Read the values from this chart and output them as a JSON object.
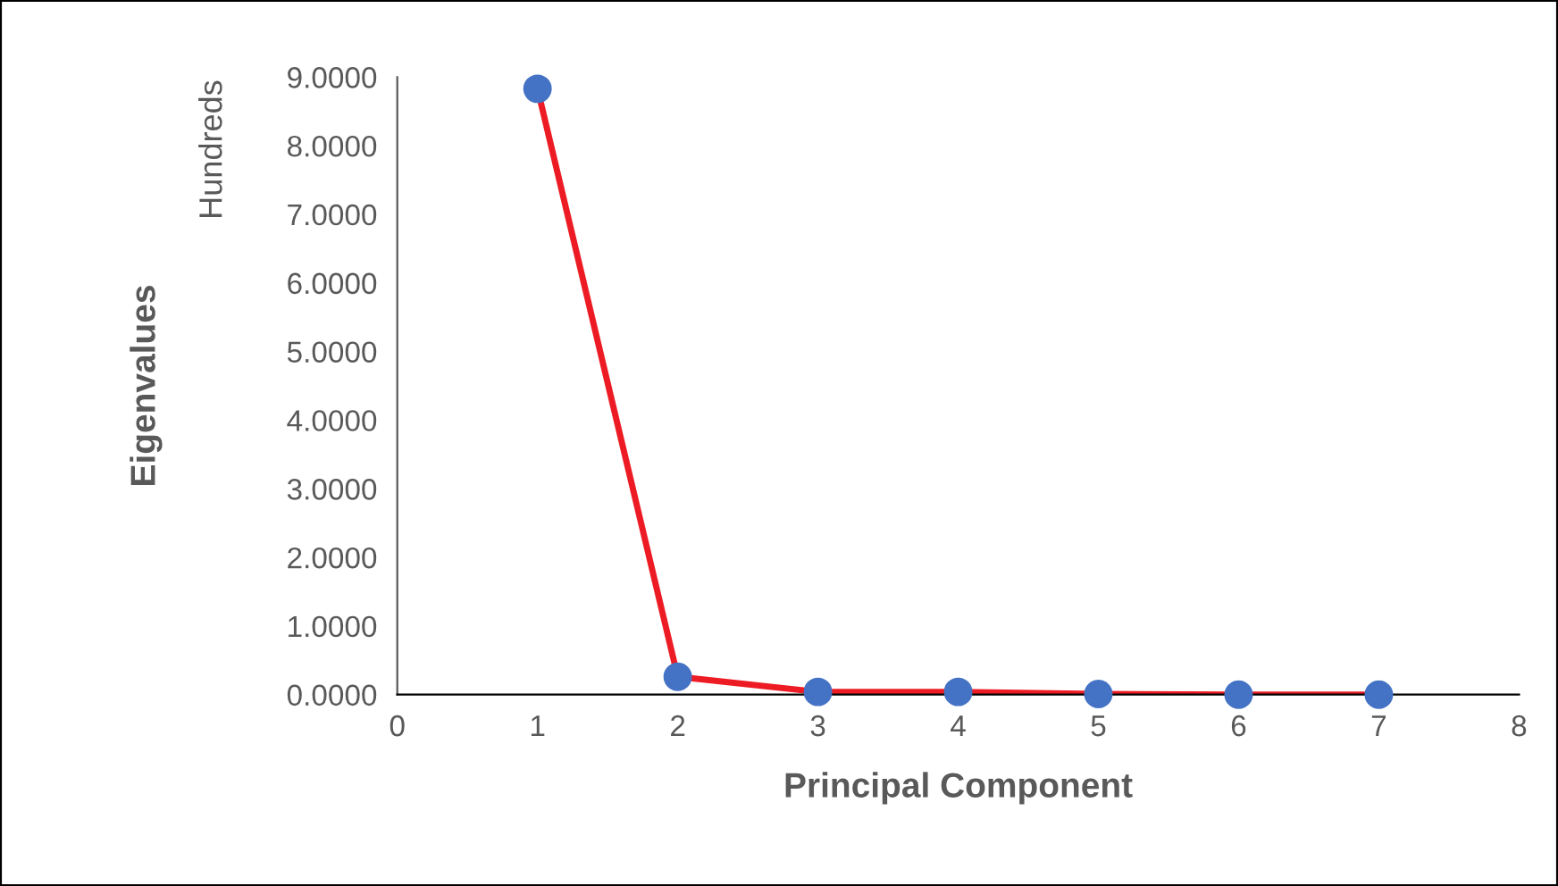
{
  "chart_data": {
    "type": "line",
    "xlabel": "Principal Component",
    "ylabel": "Eigenvalues",
    "annotations": [
      "Hundreds"
    ],
    "x": [
      1,
      2,
      3,
      4,
      5,
      6,
      7
    ],
    "series": [
      {
        "color": "#ed1c24",
        "colors": [
          "#4472c4",
          "#4472c4",
          "#4472c4",
          "#4472c4",
          "#4472c4",
          "#4472c4",
          "#4472c4"
        ],
        "values": [
          8.83,
          0.26,
          0.04,
          0.04,
          0.01,
          0.0,
          0.0
        ]
      }
    ],
    "marker": "circle",
    "line_style": "solid",
    "xlim": [
      0,
      8
    ],
    "xticks": [
      0,
      1,
      2,
      3,
      4,
      5,
      6,
      7,
      8
    ],
    "ylim": [
      0,
      9
    ],
    "yticks": [
      {
        "value": 0,
        "label": "0.0000"
      },
      {
        "value": 1,
        "label": "1.0000"
      },
      {
        "value": 2,
        "label": "2.0000"
      },
      {
        "value": 3,
        "label": "3.0000"
      },
      {
        "value": 4,
        "label": "4.0000"
      },
      {
        "value": 5,
        "label": "5.0000"
      },
      {
        "value": 6,
        "label": "6.0000"
      },
      {
        "value": 7,
        "label": "7.0000"
      },
      {
        "value": 8,
        "label": "8.0000"
      },
      {
        "value": 9,
        "label": "9.0000"
      }
    ],
    "grid": false,
    "legend": false
  }
}
